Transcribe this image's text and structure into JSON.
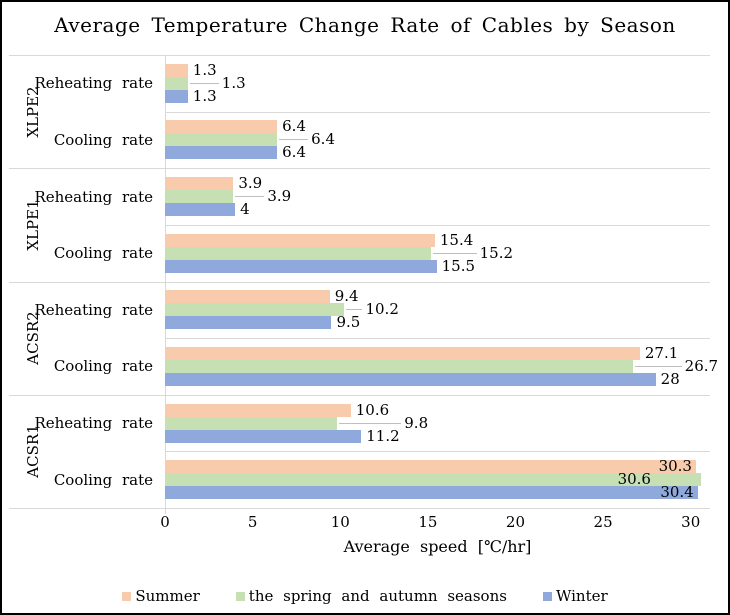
{
  "chart_data": {
    "type": "bar",
    "orientation": "horizontal",
    "title": "Average Temperature Change Rate of Cables by Season",
    "xlabel": "Average speed [℃/hr]",
    "x_ticks": [
      "0",
      "5",
      "10",
      "15",
      "20",
      "25",
      "30"
    ],
    "x_tick_values": [
      0,
      5,
      10,
      15,
      20,
      25,
      30
    ],
    "xlim": [
      0,
      31.1
    ],
    "grid": "row-separators",
    "legend_position": "bottom",
    "series": [
      {
        "name": "Summer",
        "color": "#F8CBAD"
      },
      {
        "name": "the spring and autumn seasons",
        "color": "#C6E0B4"
      },
      {
        "name": "Winter",
        "color": "#8FA9DC"
      }
    ],
    "leader_line_color": "#bfbfbf",
    "separator_color": "#d9d9d9",
    "groups": [
      {
        "label": "XLPE2",
        "rows": [
          {
            "category": "Reheating rate",
            "values": [
              1.3,
              1.3,
              1.3
            ],
            "labels": [
              "1.3",
              "1.3",
              "1.3"
            ],
            "label_placement": "callout"
          },
          {
            "category": "Cooling rate",
            "values": [
              6.4,
              6.4,
              6.4
            ],
            "labels": [
              "6.4",
              "6.4",
              "6.4"
            ],
            "label_placement": "callout"
          }
        ]
      },
      {
        "label": "XLPE1",
        "rows": [
          {
            "category": "Reheating rate",
            "values": [
              3.9,
              3.9,
              4
            ],
            "labels": [
              "3.9",
              "3.9",
              "4"
            ],
            "label_placement": "callout"
          },
          {
            "category": "Cooling rate",
            "values": [
              15.4,
              15.2,
              15.5
            ],
            "labels": [
              "15.4",
              "15.2",
              "15.5"
            ],
            "label_placement": "callout"
          }
        ]
      },
      {
        "label": "ACSR2",
        "rows": [
          {
            "category": "Reheating rate",
            "values": [
              9.4,
              10.2,
              9.5
            ],
            "labels": [
              "9.4",
              "10.2",
              "9.5"
            ],
            "label_placement": "callout"
          },
          {
            "category": "Cooling rate",
            "values": [
              27.1,
              26.7,
              28
            ],
            "labels": [
              "27.1",
              "26.7",
              "28"
            ],
            "label_placement": "callout"
          }
        ]
      },
      {
        "label": "ACSR1",
        "rows": [
          {
            "category": "Reheating rate",
            "values": [
              10.6,
              9.8,
              11.2
            ],
            "labels": [
              "10.6",
              "9.8",
              "11.2"
            ],
            "label_placement": "callout"
          },
          {
            "category": "Cooling rate",
            "values": [
              30.3,
              30.6,
              30.4
            ],
            "labels": [
              "30.3",
              "30.6",
              "30.4"
            ],
            "label_placement": "inside"
          }
        ]
      }
    ]
  }
}
